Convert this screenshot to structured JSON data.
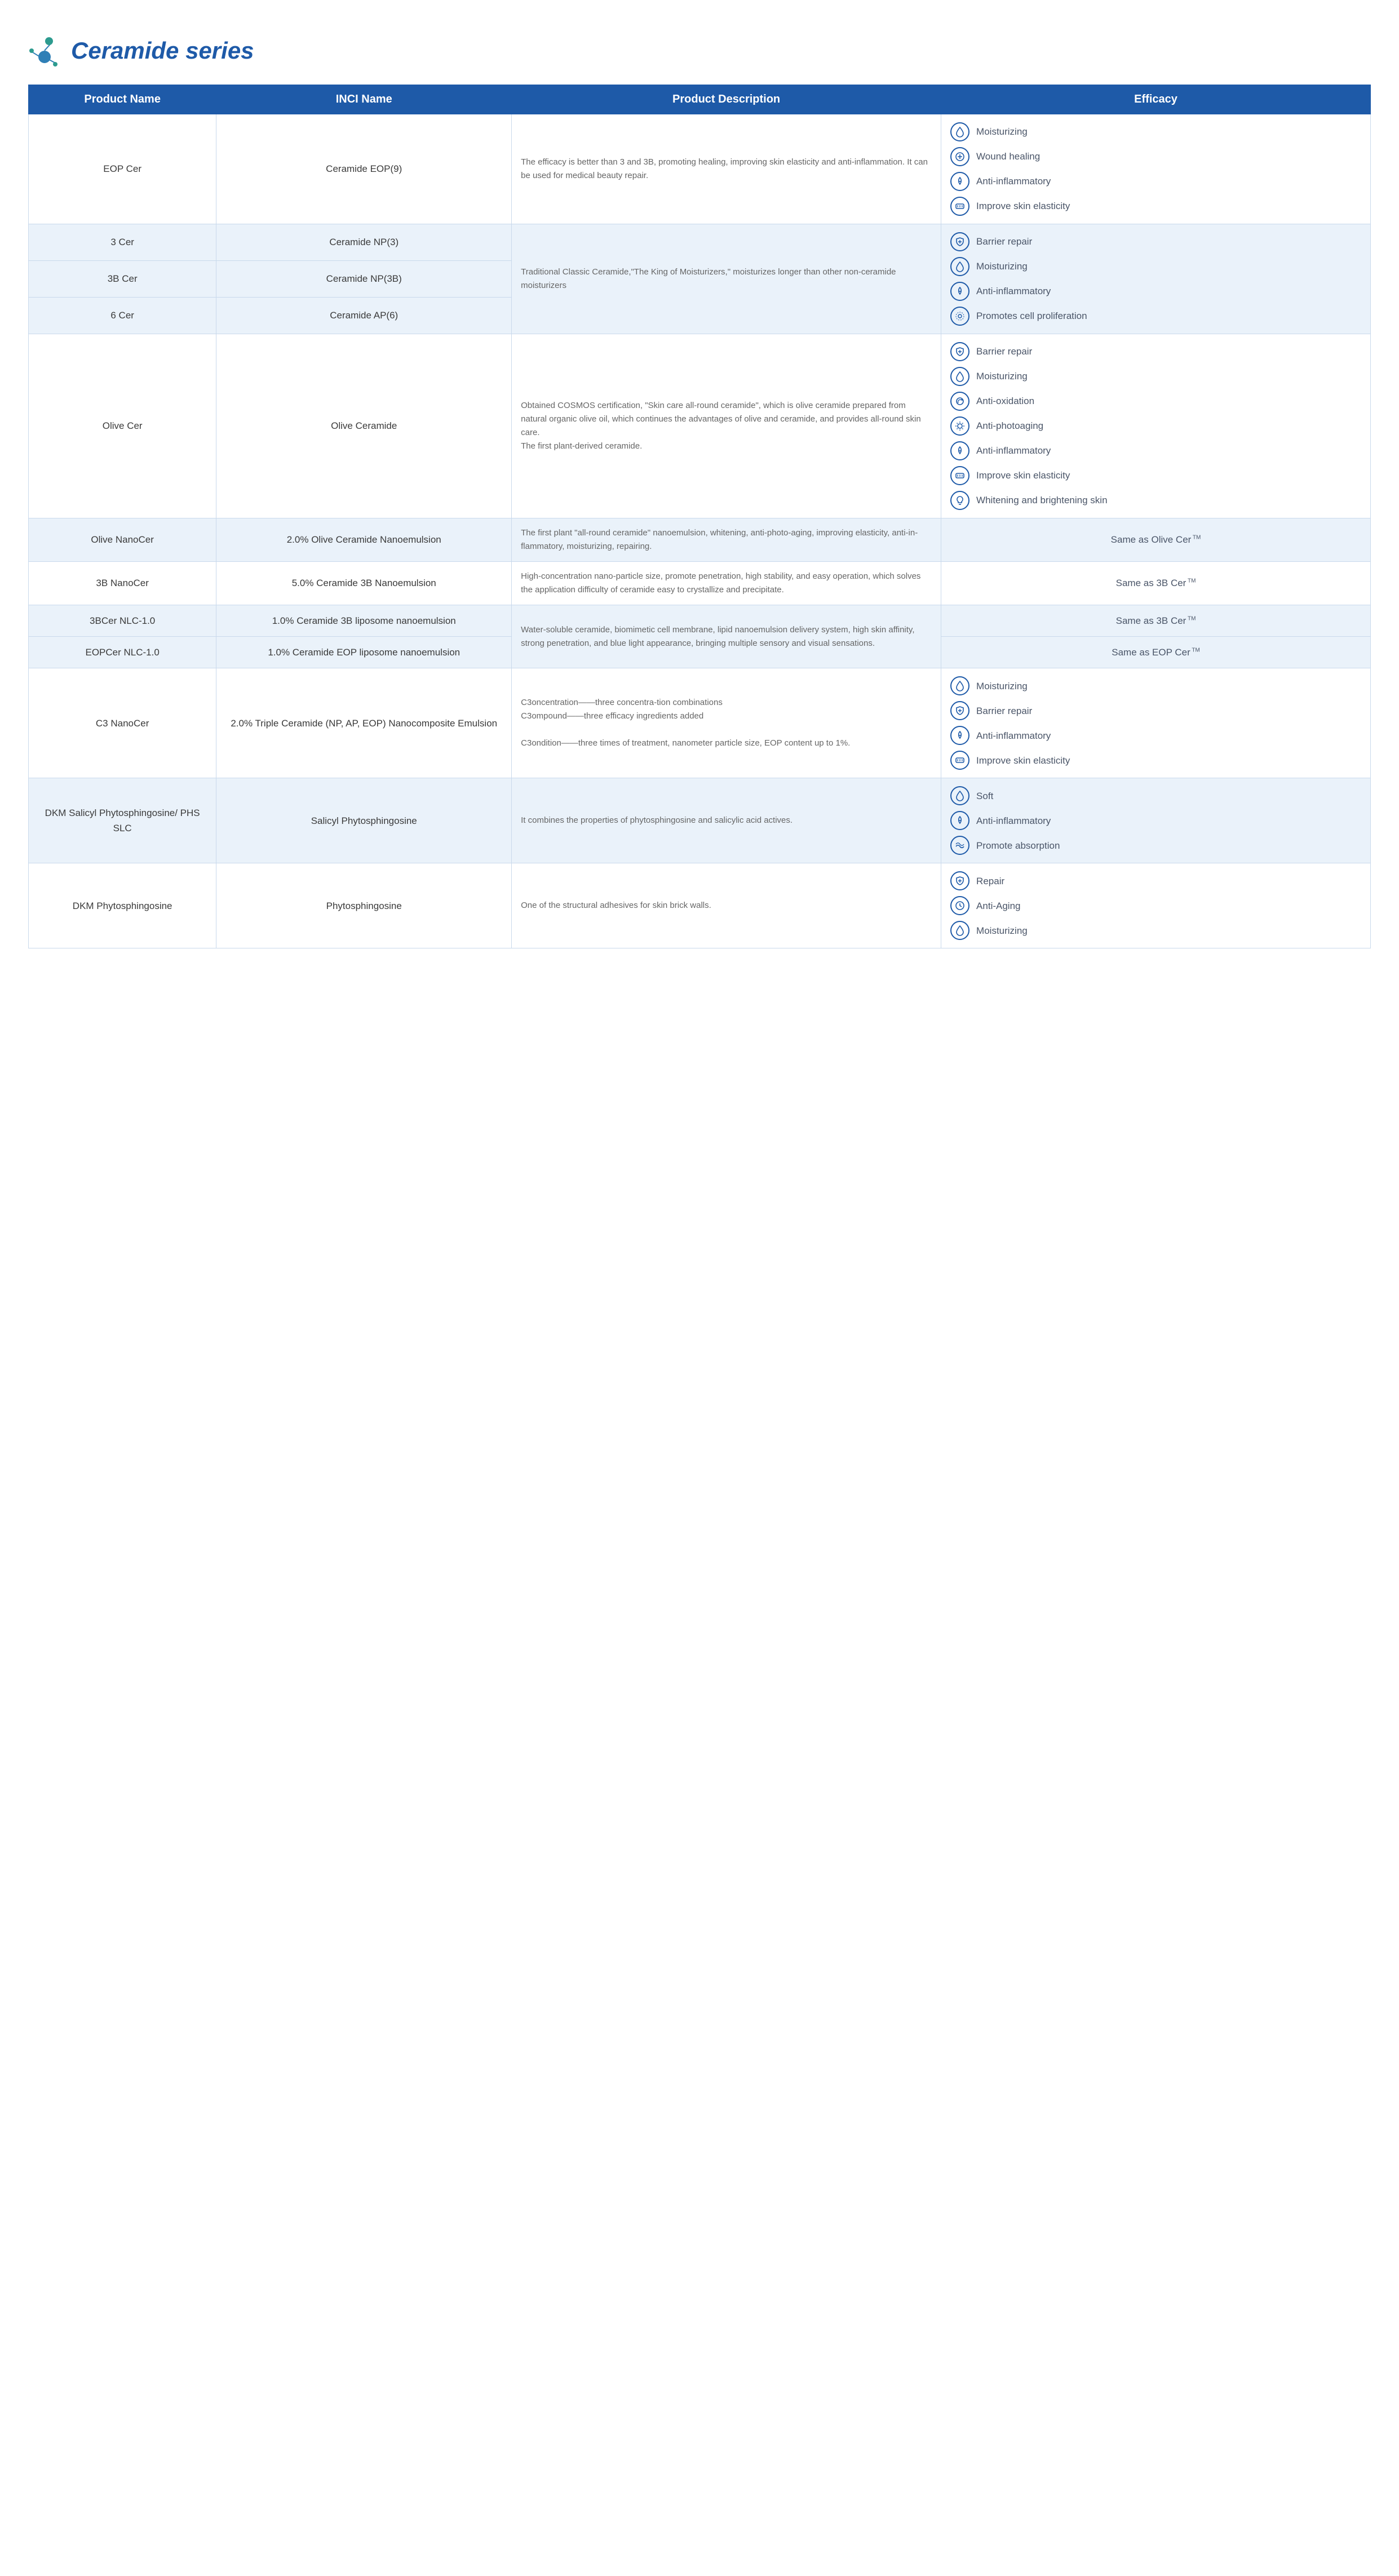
{
  "page": {
    "title": "Ceramide series",
    "colors": {
      "header_bg": "#1e5aa8",
      "header_text": "#ffffff",
      "border": "#c9d9ec",
      "row_alt": "#eaf2fa",
      "icon_stroke": "#1e5aa8",
      "title_color": "#1e5aa8"
    },
    "columns": {
      "c1": "Product Name",
      "c2": "INCI Name",
      "c3": "Product Description",
      "c4": "Efficacy"
    },
    "rows": {
      "r1": {
        "product": "EOP Cer",
        "inci": "Ceramide EOP(9)",
        "desc": "The efficacy is better than 3 and 3B, promoting healing, improving skin elasticity and anti-inflammation. It can be used for medical beauty repair.",
        "eff": [
          {
            "icon": "drop",
            "label": "Moisturizing"
          },
          {
            "icon": "heal",
            "label": "Wound healing"
          },
          {
            "icon": "anti",
            "label": "Anti-inflammatory"
          },
          {
            "icon": "elastic",
            "label": "Improve skin elasticity"
          }
        ]
      },
      "r2a": {
        "product": "3 Cer",
        "inci": "Ceramide NP(3)"
      },
      "r2b": {
        "product": "3B Cer",
        "inci": "Ceramide NP(3B)"
      },
      "r2c": {
        "product": "6 Cer",
        "inci": "Ceramide AP(6)"
      },
      "r2": {
        "desc": "Traditional Classic Ceramide,\"The King of Moisturizers,\" moisturizes longer than other non-ceramide moisturizers",
        "eff": [
          {
            "icon": "shield",
            "label": "Barrier repair"
          },
          {
            "icon": "drop",
            "label": "Moisturizing"
          },
          {
            "icon": "anti",
            "label": "Anti-inflammatory"
          },
          {
            "icon": "cell",
            "label": "Promotes cell proliferation"
          }
        ]
      },
      "r3": {
        "product": "Olive Cer",
        "inci": "Olive Ceramide",
        "desc": "Obtained COSMOS certification, \"Skin care all-round ceramide\", which is olive ceramide prepared from natural organic olive oil, which continues the advantages of olive and ceramide, and provides all-round skin care.\nThe first plant-derived ceramide.",
        "eff": [
          {
            "icon": "shield",
            "label": "Barrier repair"
          },
          {
            "icon": "drop",
            "label": "Moisturizing"
          },
          {
            "icon": "oxid",
            "label": "Anti-oxidation"
          },
          {
            "icon": "photo",
            "label": "Anti-photoaging"
          },
          {
            "icon": "anti",
            "label": "Anti-inflammatory"
          },
          {
            "icon": "elastic",
            "label": "Improve skin elasticity"
          },
          {
            "icon": "bright",
            "label": "Whitening and brightening skin"
          }
        ]
      },
      "r4": {
        "product": "Olive NanoCer",
        "inci": "2.0% Olive Ceramide Nanoemulsion",
        "desc": "The first plant \"all-round ceramide\" nanoemulsion, whitening, anti-photo-aging, improving elasticity, anti-in-flammatory, moisturizing, repairing.",
        "eff_text": "Same as Olive Cer"
      },
      "r5": {
        "product": "3B NanoCer",
        "inci": "5.0% Ceramide 3B Nanoemulsion",
        "desc": "High-concentration nano-particle size, promote penetration, high stability, and easy operation, which solves the application difficulty of ceramide easy to crystallize and precipitate.",
        "eff_text": "Same as 3B Cer"
      },
      "r6a": {
        "product": "3BCer NLC-1.0",
        "inci": "1.0% Ceramide 3B liposome nanoemulsion",
        "eff_text": "Same as 3B Cer"
      },
      "r6b": {
        "product": "EOPCer NLC-1.0",
        "inci": "1.0% Ceramide EOP liposome nanoemulsion",
        "eff_text": "Same as EOP Cer"
      },
      "r6": {
        "desc": "Water-soluble ceramide, biomimetic cell membrane, lipid nanoemulsion delivery system, high skin affinity, strong penetration, and blue light appearance, bringing multiple sensory and visual sensations."
      },
      "r7": {
        "product": "C3 NanoCer",
        "inci": "2.0% Triple Ceramide (NP, AP, EOP) Nanocomposite Emulsion",
        "desc": "C3oncentration——three concentra-tion combinations\nC3ompound——three efficacy ingredients added\n\nC3ondition——three times of treatment, nanometer particle size, EOP content up to 1%.",
        "eff": [
          {
            "icon": "drop",
            "label": "Moisturizing"
          },
          {
            "icon": "shield",
            "label": "Barrier repair"
          },
          {
            "icon": "anti",
            "label": "Anti-inflammatory"
          },
          {
            "icon": "elastic",
            "label": "Improve skin elasticity"
          }
        ]
      },
      "r8": {
        "product": "DKM Salicyl Phytosphingosine/ PHS SLC",
        "inci": "Salicyl Phytosphingosine",
        "desc": "It combines the properties of phytosphingosine and salicylic acid actives.",
        "eff": [
          {
            "icon": "drop",
            "label": "Soft"
          },
          {
            "icon": "anti",
            "label": "Anti-inflammatory"
          },
          {
            "icon": "absorb",
            "label": "Promote absorption"
          }
        ]
      },
      "r9": {
        "product": "DKM Phytosphingosine",
        "inci": "Phytosphingosine",
        "desc": "One of the structural adhesives for skin brick walls.",
        "eff": [
          {
            "icon": "shield",
            "label": "Repair"
          },
          {
            "icon": "age",
            "label": "Anti-Aging"
          },
          {
            "icon": "drop",
            "label": "Moisturizing"
          }
        ]
      }
    }
  }
}
